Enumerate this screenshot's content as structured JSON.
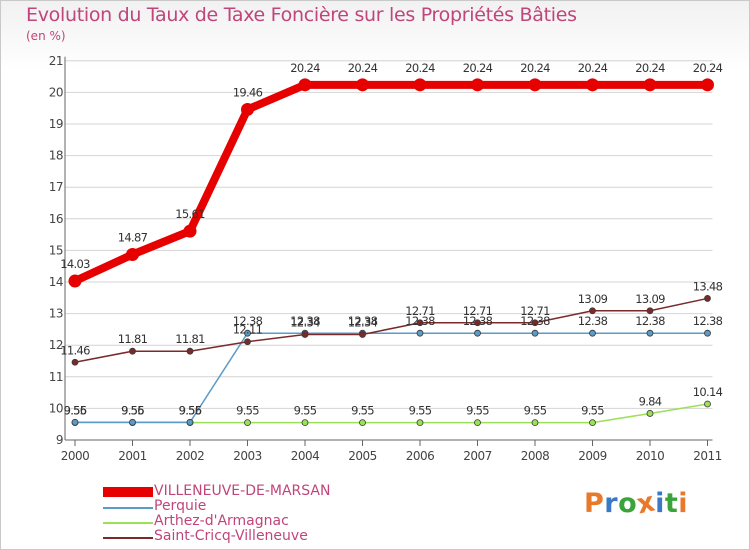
{
  "chart_data": {
    "type": "line",
    "title": "Evolution du Taux de Taxe Foncière sur les Propriétés Bâties",
    "unit_label": "(en %)",
    "xlabel": "",
    "ylabel": "",
    "ylim": [
      9,
      21
    ],
    "yticks": [
      "9",
      "10",
      "11",
      "12",
      "13",
      "14",
      "15",
      "16",
      "17",
      "18",
      "19",
      "20",
      "21"
    ],
    "categories": [
      "2000",
      "2001",
      "2002",
      "2003",
      "2004",
      "2005",
      "2006",
      "2007",
      "2008",
      "2009",
      "2010",
      "2011"
    ],
    "series": [
      {
        "name": "VILLENEUVE-DE-MARSAN",
        "color": "#e60000",
        "values": [
          14.03,
          14.87,
          15.61,
          19.46,
          20.24,
          20.24,
          20.24,
          20.24,
          20.24,
          20.24,
          20.24,
          20.24
        ],
        "labels": [
          "14.03",
          "14.87",
          "15.61",
          "19.46",
          "20.24",
          "20.24",
          "20.24",
          "20.24",
          "20.24",
          "20.24",
          "20.24",
          "20.24"
        ]
      },
      {
        "name": "Perquie",
        "color": "#5b9bc8",
        "values": [
          9.56,
          9.56,
          9.56,
          12.38,
          12.38,
          12.38,
          12.38,
          12.38,
          12.38,
          12.38,
          12.38,
          12.38
        ],
        "labels": [
          "9.56",
          "9.56",
          "9.56",
          "12.38",
          "12.38",
          "12.38",
          "12.38",
          "12.38",
          "12.38",
          "12.38",
          "12.38",
          "12.38"
        ]
      },
      {
        "name": "Arthez-d'Armagnac",
        "color": "#9ce05a",
        "values": [
          9.55,
          9.55,
          9.55,
          9.55,
          9.55,
          9.55,
          9.55,
          9.55,
          9.55,
          9.55,
          9.84,
          10.14
        ],
        "labels": [
          "9.55",
          "9.55",
          "9.55",
          "9.55",
          "9.55",
          "9.55",
          "9.55",
          "9.55",
          "9.55",
          "9.55",
          "9.84",
          "10.14"
        ]
      },
      {
        "name": "Saint-Cricq-Villeneuve",
        "color": "#7a2a2a",
        "values": [
          11.46,
          11.81,
          11.81,
          12.11,
          12.34,
          12.34,
          12.71,
          12.71,
          12.71,
          13.09,
          13.09,
          13.48
        ],
        "labels": [
          "11.46",
          "11.81",
          "11.81",
          "12.11",
          "12.34",
          "12.34",
          "12.71",
          "12.71",
          "12.71",
          "13.09",
          "13.09",
          "13.48"
        ]
      }
    ]
  },
  "logo": {
    "letters": [
      "P",
      "r",
      "o",
      "x",
      "i",
      "t",
      "i"
    ],
    "colors": [
      "#e8782a",
      "#3a78c8",
      "#3aa43a",
      "#e8782a",
      "#3a78c8",
      "#3aa43a",
      "#e8782a"
    ]
  }
}
